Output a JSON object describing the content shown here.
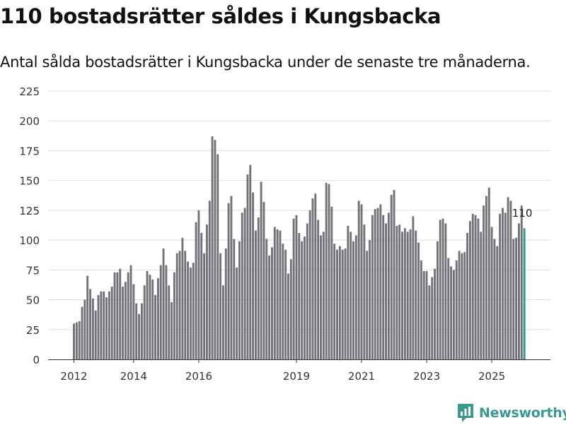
{
  "chart_data": {
    "type": "bar",
    "title": "110 bostadsrätter såldes i Kungsbacka",
    "subtitle": "Antal sålda bostadsrätter i Kungsbacka under de senaste tre månaderna.",
    "xlabel": "",
    "ylabel": "",
    "ylim": [
      0,
      225
    ],
    "yticks": [
      0,
      25,
      50,
      75,
      100,
      125,
      150,
      175,
      200,
      225
    ],
    "grid": true,
    "series": [
      {
        "name": "Antal sålda bostadsrätter (senaste tre månaderna)",
        "start": "2012-02",
        "frequency": "monthly",
        "values": [
          30,
          31,
          32,
          44,
          50,
          70,
          59,
          51,
          41,
          54,
          57,
          57,
          52,
          57,
          61,
          73,
          73,
          76,
          61,
          65,
          73,
          79,
          63,
          47,
          38,
          47,
          62,
          74,
          71,
          67,
          54,
          68,
          79,
          93,
          79,
          62,
          48,
          73,
          89,
          91,
          102,
          91,
          82,
          77,
          81,
          115,
          125,
          106,
          89,
          113,
          133,
          187,
          184,
          172,
          89,
          62,
          93,
          131,
          137,
          101,
          77,
          99,
          123,
          127,
          155,
          163,
          140,
          108,
          119,
          149,
          132,
          101,
          87,
          94,
          111,
          109,
          108,
          97,
          92,
          72,
          84,
          118,
          121,
          106,
          99,
          103,
          114,
          125,
          135,
          139,
          117,
          104,
          107,
          148,
          147,
          128,
          97,
          92,
          95,
          92,
          93,
          112,
          107,
          99,
          104,
          133,
          130,
          113,
          91,
          100,
          121,
          126,
          127,
          130,
          121,
          114,
          123,
          138,
          142,
          112,
          113,
          107,
          110,
          107,
          109,
          120,
          108,
          98,
          83,
          74,
          74,
          62,
          69,
          76,
          99,
          117,
          118,
          114,
          85,
          78,
          75,
          83,
          91,
          89,
          90,
          106,
          116,
          122,
          121,
          118,
          107,
          129,
          137,
          144,
          111,
          101,
          95,
          122,
          127,
          123,
          136,
          133,
          101,
          102,
          114,
          129,
          110
        ]
      }
    ],
    "highlight": {
      "index": 166,
      "label": "110",
      "color": "#259b8f"
    },
    "bar_color": "#737278",
    "x_axis": {
      "tick_labels": [
        "2012",
        "2014",
        "2016",
        "2019",
        "2021",
        "2023",
        "2025"
      ],
      "tick_months_from_start": [
        0,
        22,
        46,
        82,
        106,
        130,
        154
      ]
    }
  },
  "brand": {
    "name": "Newsworthy",
    "color": "#3a9a8e",
    "icon": "newsworthy-logo-icon"
  }
}
